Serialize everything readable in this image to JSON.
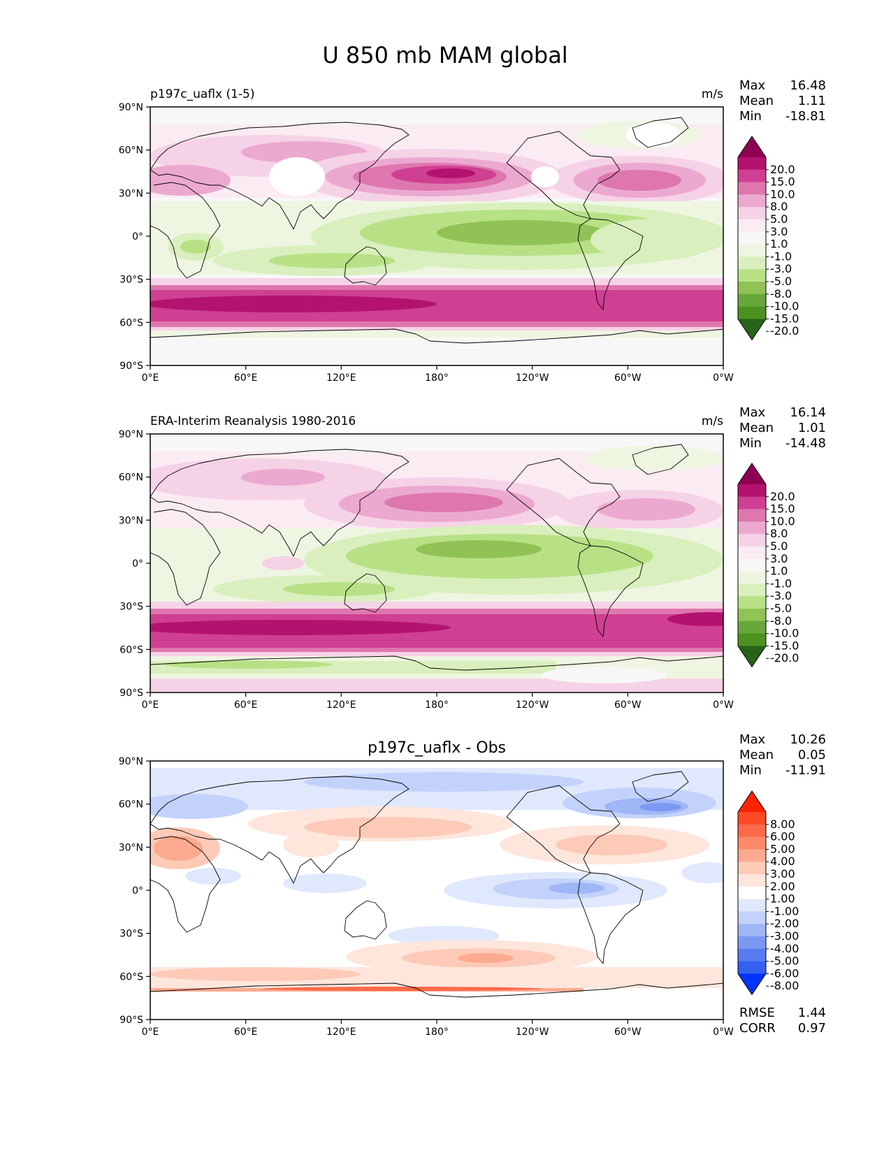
{
  "figure": {
    "title": "U 850 mb MAM global"
  },
  "axes": {
    "lat_labels": [
      "90°N",
      "60°N",
      "30°N",
      "0°",
      "30°S",
      "60°S",
      "90°S"
    ],
    "lon_labels": [
      "0°E",
      "60°E",
      "120°E",
      "180°",
      "120°W",
      "60°W",
      "0°W"
    ]
  },
  "panels": [
    {
      "left_title": "p197c_uaflx (1-5)",
      "center_title": "",
      "units": "m/s",
      "stats": {
        "max_label": "Max",
        "max": "16.48",
        "mean_label": "Mean",
        "mean": "1.11",
        "min_label": "Min",
        "min": "-18.81"
      },
      "colorbar": {
        "levels": [
          "20.0",
          "15.0",
          "10.0",
          "8.0",
          "5.0",
          "3.0",
          "1.0",
          "-1.0",
          "-3.0",
          "-5.0",
          "-8.0",
          "-10.0",
          "-15.0",
          "-20.0"
        ],
        "colors": [
          "#8e0152",
          "#b3136f",
          "#cf3f92",
          "#de77ae",
          "#eca9cf",
          "#f6d2e6",
          "#fbebf3",
          "#f7f7f7",
          "#eef6e2",
          "#d9efbd",
          "#b8e186",
          "#91c256",
          "#67a73b",
          "#4d9221",
          "#276419"
        ]
      }
    },
    {
      "left_title": "ERA-Interim Reanalysis 1980-2016",
      "center_title": "",
      "units": "m/s",
      "stats": {
        "max_label": "Max",
        "max": "16.14",
        "mean_label": "Mean",
        "mean": "1.01",
        "min_label": "Min",
        "min": "-14.48"
      },
      "colorbar": {
        "levels": [
          "20.0",
          "15.0",
          "10.0",
          "8.0",
          "5.0",
          "3.0",
          "1.0",
          "-1.0",
          "-3.0",
          "-5.0",
          "-8.0",
          "-10.0",
          "-15.0",
          "-20.0"
        ],
        "colors": [
          "#8e0152",
          "#b3136f",
          "#cf3f92",
          "#de77ae",
          "#eca9cf",
          "#f6d2e6",
          "#fbebf3",
          "#f7f7f7",
          "#eef6e2",
          "#d9efbd",
          "#b8e186",
          "#91c256",
          "#67a73b",
          "#4d9221",
          "#276419"
        ]
      }
    },
    {
      "left_title": "",
      "center_title": "p197c_uaflx - Obs",
      "units": "",
      "stats": {
        "max_label": "Max",
        "max": "10.26",
        "mean_label": "Mean",
        "mean": "0.05",
        "min_label": "Min",
        "min": "-11.91"
      },
      "colorbar": {
        "levels": [
          "8.00",
          "6.00",
          "5.00",
          "4.00",
          "3.00",
          "2.00",
          "1.00",
          "-1.00",
          "-2.00",
          "-3.00",
          "-4.00",
          "-5.00",
          "-6.00",
          "-8.00"
        ],
        "colors": [
          "#ff2200",
          "#ff4a26",
          "#fb6a4a",
          "#fc8a6a",
          "#fcaa90",
          "#fdcab8",
          "#fee6dc",
          "#ffffff",
          "#e0e8fd",
          "#c3d2fb",
          "#9fb6f7",
          "#7b98f3",
          "#587cf0",
          "#3460f0",
          "#0033ff"
        ]
      },
      "metrics": {
        "rmse_label": "RMSE",
        "rmse": "1.44",
        "corr_label": "CORR",
        "corr": "0.97"
      }
    }
  ]
}
